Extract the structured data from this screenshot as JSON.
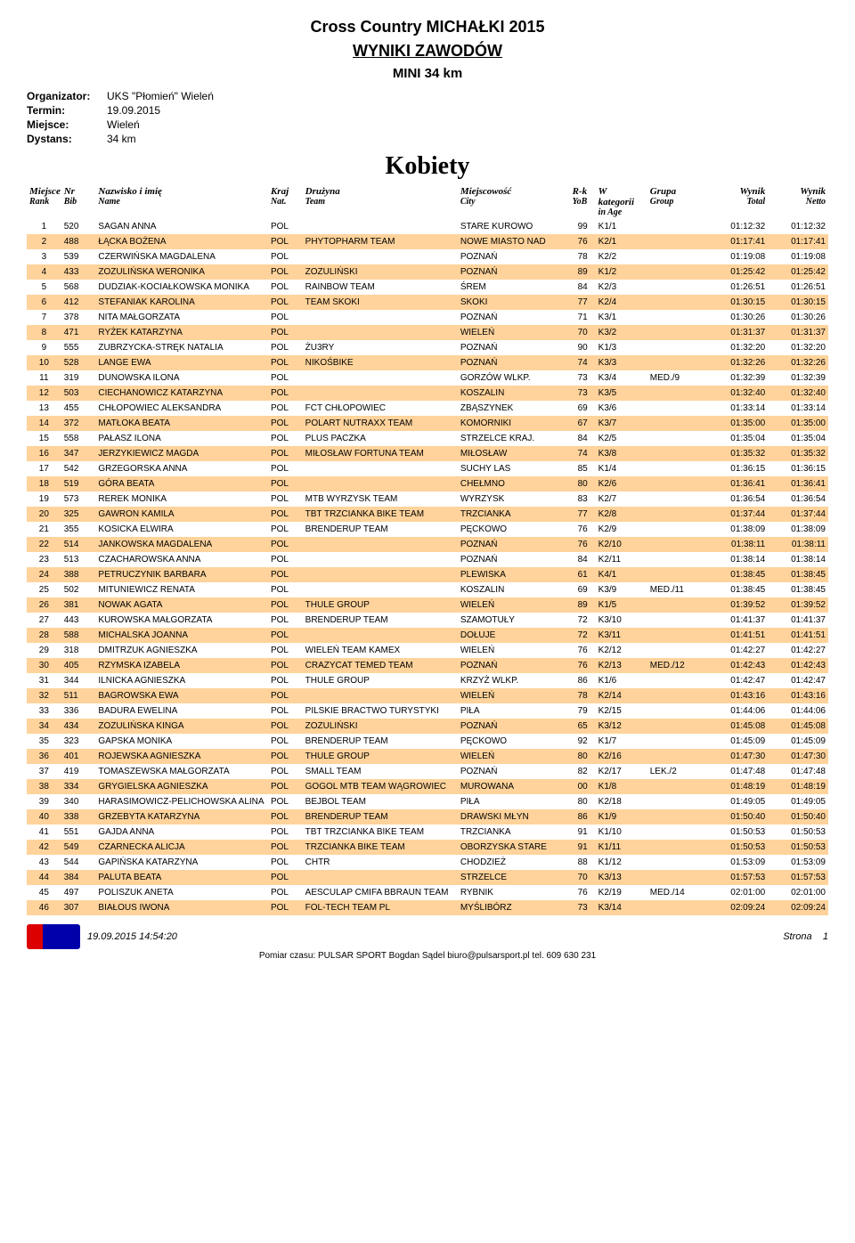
{
  "header": {
    "event": "Cross Country MICHAŁKI 2015",
    "results_title": "WYNIKI ZAWODÓW",
    "category": "MINI 34 km",
    "meta": {
      "organizer_label": "Organizator:",
      "organizer": "UKS \"Płomień\" Wieleń",
      "date_label": "Termin:",
      "date": "19.09.2015",
      "place_label": "Miejsce:",
      "place": "Wieleń",
      "distance_label": "Dystans:",
      "distance": "34 km"
    },
    "section": "Kobiety"
  },
  "columns": {
    "rank": {
      "l1": "Miejsce",
      "l2": "Rank"
    },
    "bib": {
      "l1": "Nr",
      "l2": "Bib"
    },
    "name": {
      "l1": "Nazwisko i imię",
      "l2": "Name"
    },
    "nat": {
      "l1": "Kraj",
      "l2": "Nat."
    },
    "team": {
      "l1": "Drużyna",
      "l2": "Team"
    },
    "city": {
      "l1": "Miejscowość",
      "l2": "City"
    },
    "yob": {
      "l1": "R-k",
      "l2": "YoB"
    },
    "age": {
      "l1": "W kategorii",
      "l2": "in Age"
    },
    "group": {
      "l1": "Grupa",
      "l2": "Group"
    },
    "total": {
      "l1": "Wynik",
      "l2": "Total"
    },
    "netto": {
      "l1": "Wynik",
      "l2": "Netto"
    }
  },
  "rows": [
    {
      "hl": false,
      "rank": "1",
      "bib": "520",
      "name": "SAGAN ANNA",
      "nat": "POL",
      "team": "",
      "city": "STARE KUROWO",
      "yob": "99",
      "age": "K1/1",
      "group": "",
      "total": "01:12:32",
      "netto": "01:12:32"
    },
    {
      "hl": true,
      "rank": "2",
      "bib": "488",
      "name": "ŁĄCKA BOŻENA",
      "nat": "POL",
      "team": "PHYTOPHARM TEAM",
      "city": "NOWE MIASTO NAD",
      "yob": "76",
      "age": "K2/1",
      "group": "",
      "total": "01:17:41",
      "netto": "01:17:41"
    },
    {
      "hl": false,
      "rank": "3",
      "bib": "539",
      "name": "CZERWIŃSKA MAGDALENA",
      "nat": "POL",
      "team": "",
      "city": "POZNAŃ",
      "yob": "78",
      "age": "K2/2",
      "group": "",
      "total": "01:19:08",
      "netto": "01:19:08"
    },
    {
      "hl": true,
      "rank": "4",
      "bib": "433",
      "name": "ZOZULIŃSKA WERONIKA",
      "nat": "POL",
      "team": "ZOZULIŃSKI",
      "city": "POZNAŃ",
      "yob": "89",
      "age": "K1/2",
      "group": "",
      "total": "01:25:42",
      "netto": "01:25:42"
    },
    {
      "hl": false,
      "rank": "5",
      "bib": "568",
      "name": "DUDZIAK-KOCIAŁKOWSKA MONIKA",
      "nat": "POL",
      "team": "RAINBOW TEAM",
      "city": "ŚREM",
      "yob": "84",
      "age": "K2/3",
      "group": "",
      "total": "01:26:51",
      "netto": "01:26:51"
    },
    {
      "hl": true,
      "rank": "6",
      "bib": "412",
      "name": "STEFANIAK KAROLINA",
      "nat": "POL",
      "team": "TEAM SKOKI",
      "city": "SKOKI",
      "yob": "77",
      "age": "K2/4",
      "group": "",
      "total": "01:30:15",
      "netto": "01:30:15"
    },
    {
      "hl": false,
      "rank": "7",
      "bib": "378",
      "name": "NITA MAŁGORZATA",
      "nat": "POL",
      "team": "",
      "city": "POZNAŃ",
      "yob": "71",
      "age": "K3/1",
      "group": "",
      "total": "01:30:26",
      "netto": "01:30:26"
    },
    {
      "hl": true,
      "rank": "8",
      "bib": "471",
      "name": "RYŻEK KATARZYNA",
      "nat": "POL",
      "team": "",
      "city": "WIELEŃ",
      "yob": "70",
      "age": "K3/2",
      "group": "",
      "total": "01:31:37",
      "netto": "01:31:37"
    },
    {
      "hl": false,
      "rank": "9",
      "bib": "555",
      "name": "ZUBRZYCKA-STRĘK NATALIA",
      "nat": "POL",
      "team": "ŻU3RY",
      "city": "POZNAŃ",
      "yob": "90",
      "age": "K1/3",
      "group": "",
      "total": "01:32:20",
      "netto": "01:32:20"
    },
    {
      "hl": true,
      "rank": "10",
      "bib": "528",
      "name": "LANGE EWA",
      "nat": "POL",
      "team": "NIKOŚBIKE",
      "city": "POZNAŃ",
      "yob": "74",
      "age": "K3/3",
      "group": "",
      "total": "01:32:26",
      "netto": "01:32:26"
    },
    {
      "hl": false,
      "rank": "11",
      "bib": "319",
      "name": "DUNOWSKA ILONA",
      "nat": "POL",
      "team": "",
      "city": "GORZÓW WLKP.",
      "yob": "73",
      "age": "K3/4",
      "group": "MED./9",
      "total": "01:32:39",
      "netto": "01:32:39"
    },
    {
      "hl": true,
      "rank": "12",
      "bib": "503",
      "name": "CIECHANOWICZ KATARZYNA",
      "nat": "POL",
      "team": "",
      "city": "KOSZALIN",
      "yob": "73",
      "age": "K3/5",
      "group": "",
      "total": "01:32:40",
      "netto": "01:32:40"
    },
    {
      "hl": false,
      "rank": "13",
      "bib": "455",
      "name": "CHŁOPOWIEC ALEKSANDRA",
      "nat": "POL",
      "team": "FCT CHŁOPOWIEC",
      "city": "ZBĄSZYNEK",
      "yob": "69",
      "age": "K3/6",
      "group": "",
      "total": "01:33:14",
      "netto": "01:33:14"
    },
    {
      "hl": true,
      "rank": "14",
      "bib": "372",
      "name": "MATŁOKA BEATA",
      "nat": "POL",
      "team": "POLART NUTRAXX TEAM",
      "city": "KOMORNIKI",
      "yob": "67",
      "age": "K3/7",
      "group": "",
      "total": "01:35:00",
      "netto": "01:35:00"
    },
    {
      "hl": false,
      "rank": "15",
      "bib": "558",
      "name": "PAŁASZ ILONA",
      "nat": "POL",
      "team": "PLUS PACZKA",
      "city": "STRZELCE KRAJ.",
      "yob": "84",
      "age": "K2/5",
      "group": "",
      "total": "01:35:04",
      "netto": "01:35:04"
    },
    {
      "hl": true,
      "rank": "16",
      "bib": "347",
      "name": "JERZYKIEWICZ MAGDA",
      "nat": "POL",
      "team": "MIŁOSŁAW FORTUNA TEAM",
      "city": "MIŁOSŁAW",
      "yob": "74",
      "age": "K3/8",
      "group": "",
      "total": "01:35:32",
      "netto": "01:35:32"
    },
    {
      "hl": false,
      "rank": "17",
      "bib": "542",
      "name": "GRZEGORSKA ANNA",
      "nat": "POL",
      "team": "",
      "city": "SUCHY LAS",
      "yob": "85",
      "age": "K1/4",
      "group": "",
      "total": "01:36:15",
      "netto": "01:36:15"
    },
    {
      "hl": true,
      "rank": "18",
      "bib": "519",
      "name": "GÓRA BEATA",
      "nat": "POL",
      "team": "",
      "city": "CHEŁMNO",
      "yob": "80",
      "age": "K2/6",
      "group": "",
      "total": "01:36:41",
      "netto": "01:36:41"
    },
    {
      "hl": false,
      "rank": "19",
      "bib": "573",
      "name": "REREK MONIKA",
      "nat": "POL",
      "team": "MTB WYRZYSK TEAM",
      "city": "WYRZYSK",
      "yob": "83",
      "age": "K2/7",
      "group": "",
      "total": "01:36:54",
      "netto": "01:36:54"
    },
    {
      "hl": true,
      "rank": "20",
      "bib": "325",
      "name": "GAWRON KAMILA",
      "nat": "POL",
      "team": "TBT TRZCIANKA BIKE TEAM",
      "city": "TRZCIANKA",
      "yob": "77",
      "age": "K2/8",
      "group": "",
      "total": "01:37:44",
      "netto": "01:37:44"
    },
    {
      "hl": false,
      "rank": "21",
      "bib": "355",
      "name": "KOSICKA ELWIRA",
      "nat": "POL",
      "team": "BRENDERUP TEAM",
      "city": "PĘCKOWO",
      "yob": "76",
      "age": "K2/9",
      "group": "",
      "total": "01:38:09",
      "netto": "01:38:09"
    },
    {
      "hl": true,
      "rank": "22",
      "bib": "514",
      "name": "JANKOWSKA MAGDALENA",
      "nat": "POL",
      "team": "",
      "city": "POZNAŃ",
      "yob": "76",
      "age": "K2/10",
      "group": "",
      "total": "01:38:11",
      "netto": "01:38:11"
    },
    {
      "hl": false,
      "rank": "23",
      "bib": "513",
      "name": "CZACHAROWSKA ANNA",
      "nat": "POL",
      "team": "",
      "city": "POZNAŃ",
      "yob": "84",
      "age": "K2/11",
      "group": "",
      "total": "01:38:14",
      "netto": "01:38:14"
    },
    {
      "hl": true,
      "rank": "24",
      "bib": "388",
      "name": "PETRUCZYNIK BARBARA",
      "nat": "POL",
      "team": "",
      "city": "PLEWISKA",
      "yob": "61",
      "age": "K4/1",
      "group": "",
      "total": "01:38:45",
      "netto": "01:38:45"
    },
    {
      "hl": false,
      "rank": "25",
      "bib": "502",
      "name": "MITUNIEWICZ RENATA",
      "nat": "POL",
      "team": "",
      "city": "KOSZALIN",
      "yob": "69",
      "age": "K3/9",
      "group": "MED./11",
      "total": "01:38:45",
      "netto": "01:38:45"
    },
    {
      "hl": true,
      "rank": "26",
      "bib": "381",
      "name": "NOWAK AGATA",
      "nat": "POL",
      "team": "THULE GROUP",
      "city": "WIELEŃ",
      "yob": "89",
      "age": "K1/5",
      "group": "",
      "total": "01:39:52",
      "netto": "01:39:52"
    },
    {
      "hl": false,
      "rank": "27",
      "bib": "443",
      "name": "KUROWSKA MAŁGORZATA",
      "nat": "POL",
      "team": "BRENDERUP TEAM",
      "city": "SZAMOTUŁY",
      "yob": "72",
      "age": "K3/10",
      "group": "",
      "total": "01:41:37",
      "netto": "01:41:37"
    },
    {
      "hl": true,
      "rank": "28",
      "bib": "588",
      "name": "MICHALSKA JOANNA",
      "nat": "POL",
      "team": "",
      "city": "DOŁUJE",
      "yob": "72",
      "age": "K3/11",
      "group": "",
      "total": "01:41:51",
      "netto": "01:41:51"
    },
    {
      "hl": false,
      "rank": "29",
      "bib": "318",
      "name": "DMITRZUK AGNIESZKA",
      "nat": "POL",
      "team": "WIELEŃ TEAM KAMEX",
      "city": "WIELEŃ",
      "yob": "76",
      "age": "K2/12",
      "group": "",
      "total": "01:42:27",
      "netto": "01:42:27"
    },
    {
      "hl": true,
      "rank": "30",
      "bib": "405",
      "name": "RZYMSKA IZABELA",
      "nat": "POL",
      "team": "CRAZYCAT TEMED TEAM",
      "city": "POZNAŃ",
      "yob": "76",
      "age": "K2/13",
      "group": "MED./12",
      "total": "01:42:43",
      "netto": "01:42:43"
    },
    {
      "hl": false,
      "rank": "31",
      "bib": "344",
      "name": "ILNICKA AGNIESZKA",
      "nat": "POL",
      "team": "THULE GROUP",
      "city": "KRZYŻ WLKP.",
      "yob": "86",
      "age": "K1/6",
      "group": "",
      "total": "01:42:47",
      "netto": "01:42:47"
    },
    {
      "hl": true,
      "rank": "32",
      "bib": "511",
      "name": "BAGROWSKA EWA",
      "nat": "POL",
      "team": "",
      "city": "WIELEŃ",
      "yob": "78",
      "age": "K2/14",
      "group": "",
      "total": "01:43:16",
      "netto": "01:43:16"
    },
    {
      "hl": false,
      "rank": "33",
      "bib": "336",
      "name": "BADURA EWELINA",
      "nat": "POL",
      "team": "PILSKIE BRACTWO TURYSTYKI",
      "city": "PIŁA",
      "yob": "79",
      "age": "K2/15",
      "group": "",
      "total": "01:44:06",
      "netto": "01:44:06"
    },
    {
      "hl": true,
      "rank": "34",
      "bib": "434",
      "name": "ZOZULIŃSKA KINGA",
      "nat": "POL",
      "team": "ZOZULIŃSKI",
      "city": "POZNAŃ",
      "yob": "65",
      "age": "K3/12",
      "group": "",
      "total": "01:45:08",
      "netto": "01:45:08"
    },
    {
      "hl": false,
      "rank": "35",
      "bib": "323",
      "name": "GAPSKA MONIKA",
      "nat": "POL",
      "team": "BRENDERUP TEAM",
      "city": "PĘCKOWO",
      "yob": "92",
      "age": "K1/7",
      "group": "",
      "total": "01:45:09",
      "netto": "01:45:09"
    },
    {
      "hl": true,
      "rank": "36",
      "bib": "401",
      "name": "ROJEWSKA AGNIESZKA",
      "nat": "POL",
      "team": "THULE GROUP",
      "city": "WIELEŃ",
      "yob": "80",
      "age": "K2/16",
      "group": "",
      "total": "01:47:30",
      "netto": "01:47:30"
    },
    {
      "hl": false,
      "rank": "37",
      "bib": "419",
      "name": "TOMASZEWSKA MAŁGORZATA",
      "nat": "POL",
      "team": "SMALL TEAM",
      "city": "POZNAŃ",
      "yob": "82",
      "age": "K2/17",
      "group": "LEK./2",
      "total": "01:47:48",
      "netto": "01:47:48"
    },
    {
      "hl": true,
      "rank": "38",
      "bib": "334",
      "name": "GRYGIELSKA AGNIESZKA",
      "nat": "POL",
      "team": "GOGOL MTB TEAM WĄGROWIEC",
      "city": "MUROWANA",
      "yob": "00",
      "age": "K1/8",
      "group": "",
      "total": "01:48:19",
      "netto": "01:48:19"
    },
    {
      "hl": false,
      "rank": "39",
      "bib": "340",
      "name": "HARASIMOWICZ-PELICHOWSKA ALINA",
      "nat": "POL",
      "team": "BEJBOL TEAM",
      "city": "PIŁA",
      "yob": "80",
      "age": "K2/18",
      "group": "",
      "total": "01:49:05",
      "netto": "01:49:05"
    },
    {
      "hl": true,
      "rank": "40",
      "bib": "338",
      "name": "GRZEBYTA KATARZYNA",
      "nat": "POL",
      "team": "BRENDERUP TEAM",
      "city": "DRAWSKI MŁYN",
      "yob": "86",
      "age": "K1/9",
      "group": "",
      "total": "01:50:40",
      "netto": "01:50:40"
    },
    {
      "hl": false,
      "rank": "41",
      "bib": "551",
      "name": "GAJDA ANNA",
      "nat": "POL",
      "team": "TBT TRZCIANKA BIKE TEAM",
      "city": "TRZCIANKA",
      "yob": "91",
      "age": "K1/10",
      "group": "",
      "total": "01:50:53",
      "netto": "01:50:53"
    },
    {
      "hl": true,
      "rank": "42",
      "bib": "549",
      "name": "CZARNECKA ALICJA",
      "nat": "POL",
      "team": "TRZCIANKA BIKE TEAM",
      "city": "OBORZYSKA STARE",
      "yob": "91",
      "age": "K1/11",
      "group": "",
      "total": "01:50:53",
      "netto": "01:50:53"
    },
    {
      "hl": false,
      "rank": "43",
      "bib": "544",
      "name": "GAPIŃSKA KATARZYNA",
      "nat": "POL",
      "team": "CHTR",
      "city": "CHODZIEŻ",
      "yob": "88",
      "age": "K1/12",
      "group": "",
      "total": "01:53:09",
      "netto": "01:53:09"
    },
    {
      "hl": true,
      "rank": "44",
      "bib": "384",
      "name": "PALUTA BEATA",
      "nat": "POL",
      "team": "",
      "city": "STRZELCE",
      "yob": "70",
      "age": "K3/13",
      "group": "",
      "total": "01:57:53",
      "netto": "01:57:53"
    },
    {
      "hl": false,
      "rank": "45",
      "bib": "497",
      "name": "POLISZUK ANETA",
      "nat": "POL",
      "team": "AESCULAP CMIFA BBRAUN TEAM",
      "city": "RYBNIK",
      "yob": "76",
      "age": "K2/19",
      "group": "MED./14",
      "total": "02:01:00",
      "netto": "02:01:00"
    },
    {
      "hl": true,
      "rank": "46",
      "bib": "307",
      "name": "BIAŁOUS IWONA",
      "nat": "POL",
      "team": "FOL-TECH TEAM PL",
      "city": "MYŚLIBÓRZ",
      "yob": "73",
      "age": "K3/14",
      "group": "",
      "total": "02:09:24",
      "netto": "02:09:24"
    }
  ],
  "footer": {
    "timestamp": "19.09.2015 14:54:20",
    "page_label": "Strona",
    "page_num": "1",
    "contact": "Pomiar czasu: PULSAR SPORT Bogdan Sądel biuro@pulsarsport.pl tel. 609 630 231"
  }
}
